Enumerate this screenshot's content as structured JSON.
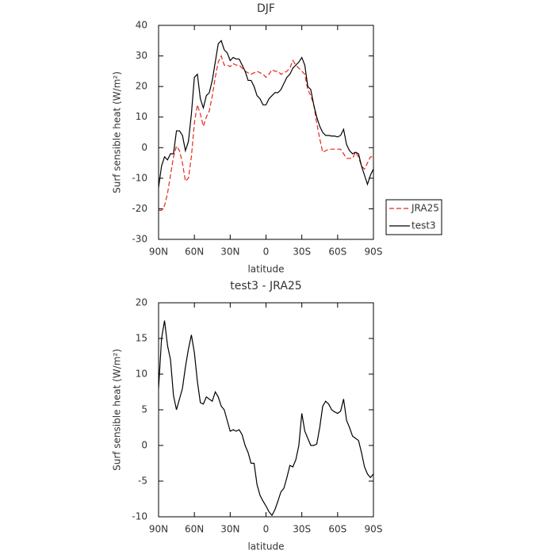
{
  "chart_data": [
    {
      "type": "line",
      "title": "DJF",
      "xlabel": "latitude",
      "ylabel": "Surf sensible heat (W/m²)",
      "x": [
        90,
        87.5,
        85,
        82.5,
        80,
        77.5,
        75,
        72.5,
        70,
        67.5,
        65,
        62.5,
        60,
        57.5,
        55,
        52.5,
        50,
        47.5,
        45,
        42.5,
        40,
        37.5,
        35,
        32.5,
        30,
        27.5,
        25,
        22.5,
        20,
        17.5,
        15,
        12.5,
        10,
        7.5,
        5,
        2.5,
        0,
        -2.5,
        -5,
        -7.5,
        -10,
        -12.5,
        -15,
        -17.5,
        -20,
        -22.5,
        -25,
        -27.5,
        -30,
        -32.5,
        -35,
        -37.5,
        -40,
        -42.5,
        -45,
        -47.5,
        -50,
        -52.5,
        -55,
        -57.5,
        -60,
        -62.5,
        -65,
        -67.5,
        -70,
        -72.5,
        -75,
        -77.5,
        -80,
        -82.5,
        -85,
        -87.5,
        -90
      ],
      "series": [
        {
          "name": "JRA25",
          "color": "#e8261e",
          "linestyle": "dashed",
          "values": [
            -20.5,
            -20.5,
            -19,
            -15,
            -9,
            -3,
            0.5,
            -1,
            -5,
            -11,
            -10,
            -3,
            8,
            14,
            11,
            7,
            10,
            12,
            17,
            23,
            28,
            30,
            27,
            27,
            26.5,
            27.5,
            27,
            27,
            26,
            25,
            24.5,
            24,
            24.5,
            25,
            24.5,
            24,
            23,
            24,
            25.5,
            25,
            25,
            24,
            24.5,
            25,
            26,
            28.5,
            27,
            26,
            25,
            24,
            19,
            17,
            14,
            8,
            3,
            -1.5,
            -1,
            -0.5,
            -0.5,
            -0.5,
            -0.5,
            -0.5,
            -2,
            -3.5,
            -3.5,
            -3.5,
            -1.5,
            -3,
            -6,
            -7,
            -5,
            -3,
            -3
          ]
        },
        {
          "name": "test3",
          "color": "#000000",
          "linestyle": "solid",
          "values": [
            -13,
            -6,
            -3,
            -4,
            -2,
            -2,
            5.5,
            5.5,
            4,
            -1,
            2,
            11,
            23,
            24,
            16,
            13,
            17,
            18,
            22,
            28,
            34,
            35,
            32,
            31,
            28.5,
            29.5,
            29,
            29,
            27,
            25,
            22,
            22,
            20,
            17,
            16,
            14,
            14,
            16,
            17,
            18,
            18,
            19,
            21,
            23,
            24,
            26,
            27,
            28,
            29.5,
            27,
            20,
            19,
            14,
            10,
            7,
            5,
            4,
            4,
            3.8,
            3.8,
            3.5,
            4,
            6,
            1,
            -1,
            -2,
            -1.5,
            -2,
            -6,
            -9,
            -12,
            -9,
            -7
          ]
        }
      ],
      "xlim": [
        90,
        -90
      ],
      "xticks": [
        {
          "value": 90,
          "label": "90N"
        },
        {
          "value": 60,
          "label": "60N"
        },
        {
          "value": 30,
          "label": "30N"
        },
        0,
        {
          "value": -30,
          "label": "30S"
        },
        {
          "value": -60,
          "label": "60S"
        },
        {
          "value": -90,
          "label": "90S"
        }
      ],
      "ylim": [
        -30,
        40
      ],
      "yticks": [
        -30,
        -20,
        -10,
        0,
        10,
        20,
        30,
        40
      ],
      "grid": false,
      "legend": "right"
    },
    {
      "type": "line",
      "title": "test3 - JRA25",
      "xlabel": "latitude",
      "ylabel": "Surf sensible heat (W/m²)",
      "x": [
        90,
        87.5,
        85,
        82.5,
        80,
        77.5,
        75,
        72.5,
        70,
        67.5,
        65,
        62.5,
        60,
        57.5,
        55,
        52.5,
        50,
        47.5,
        45,
        42.5,
        40,
        37.5,
        35,
        32.5,
        30,
        27.5,
        25,
        22.5,
        20,
        17.5,
        15,
        12.5,
        10,
        7.5,
        5,
        2.5,
        0,
        -2.5,
        -5,
        -7.5,
        -10,
        -12.5,
        -15,
        -17.5,
        -20,
        -22.5,
        -25,
        -27.5,
        -30,
        -32.5,
        -35,
        -37.5,
        -40,
        -42.5,
        -45,
        -47.5,
        -50,
        -52.5,
        -55,
        -57.5,
        -60,
        -62.5,
        -65,
        -67.5,
        -70,
        -72.5,
        -75,
        -77.5,
        -80,
        -82.5,
        -85,
        -87.5,
        -90
      ],
      "series": [
        {
          "color": "#000000",
          "linestyle": "solid",
          "values": [
            8,
            15,
            17.5,
            14,
            12,
            7,
            5,
            6.5,
            8,
            11,
            13.5,
            15.5,
            13,
            9,
            6,
            5.8,
            6.8,
            6.5,
            6.2,
            7.5,
            6.8,
            5.5,
            5,
            3.5,
            2,
            2.2,
            2,
            2.2,
            1.5,
            0,
            -1,
            -2.5,
            -2.5,
            -5.5,
            -7,
            -7.8,
            -8.5,
            -9.3,
            -9.8,
            -9,
            -7.8,
            -6.5,
            -6,
            -4.5,
            -2.8,
            -3,
            -2,
            0,
            4.5,
            2,
            1,
            0,
            0,
            0.2,
            2.5,
            5.5,
            6.2,
            5.8,
            5,
            4.7,
            4.5,
            4.8,
            6.5,
            3.5,
            2.5,
            1.3,
            1,
            0.7,
            -1,
            -3,
            -4,
            -4.5,
            -4
          ]
        }
      ],
      "xlim": [
        90,
        -90
      ],
      "xticks": [
        {
          "value": 90,
          "label": "90N"
        },
        {
          "value": 60,
          "label": "60N"
        },
        {
          "value": 30,
          "label": "30N"
        },
        0,
        {
          "value": -30,
          "label": "30S"
        },
        {
          "value": -60,
          "label": "60S"
        },
        {
          "value": -90,
          "label": "90S"
        }
      ],
      "ylim": [
        -10,
        20
      ],
      "yticks": [
        -10,
        -5,
        0,
        5,
        10,
        15,
        20
      ],
      "grid": false
    }
  ]
}
